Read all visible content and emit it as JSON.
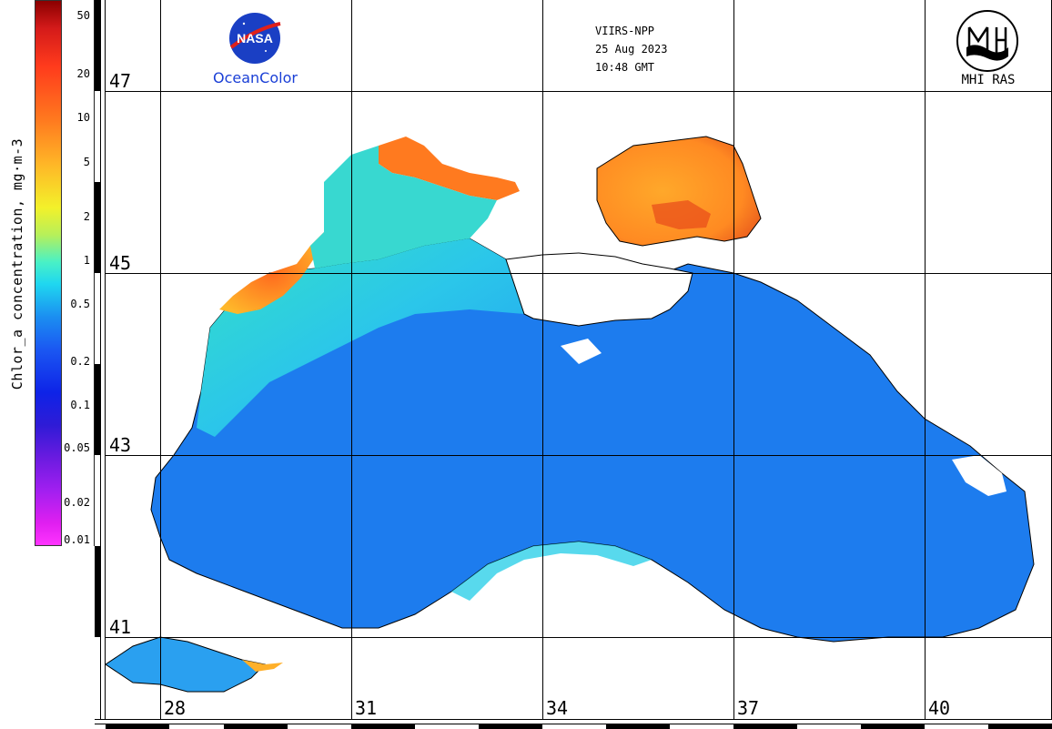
{
  "header": {
    "sensor": "VIIRS-NPP",
    "date": "25 Aug 2023",
    "time": "10:48 GMT",
    "oceancolor_label": "OceanColor",
    "nasa_logo_text": "NASA",
    "institute_label": "MHI RAS"
  },
  "colorbar": {
    "title": "Chlor_a concentration, mg·m-3",
    "scale": "log",
    "range": [
      0.01,
      50
    ],
    "ticks": [
      "50",
      "20",
      "10",
      "5",
      "2",
      "1",
      "0.5",
      "0.2",
      "0.1",
      "0.05",
      "0.02",
      "0.01"
    ],
    "tick_values": [
      50,
      20,
      10,
      5,
      2,
      1,
      0.5,
      0.2,
      0.1,
      0.05,
      0.02,
      0.01
    ]
  },
  "grid": {
    "latitudes": [
      "47",
      "45",
      "43",
      "41"
    ],
    "longitudes": [
      "28",
      "31",
      "34",
      "37",
      "40"
    ]
  },
  "colors": {
    "water_open": "#1b78ee",
    "water_shelf": "#2ac4ea",
    "water_coast_high": "#ff8a22",
    "water_very_high": "#c41414",
    "land": "#ffffff",
    "coastline": "#000000",
    "oceancolor_text": "#1a3fd6"
  }
}
